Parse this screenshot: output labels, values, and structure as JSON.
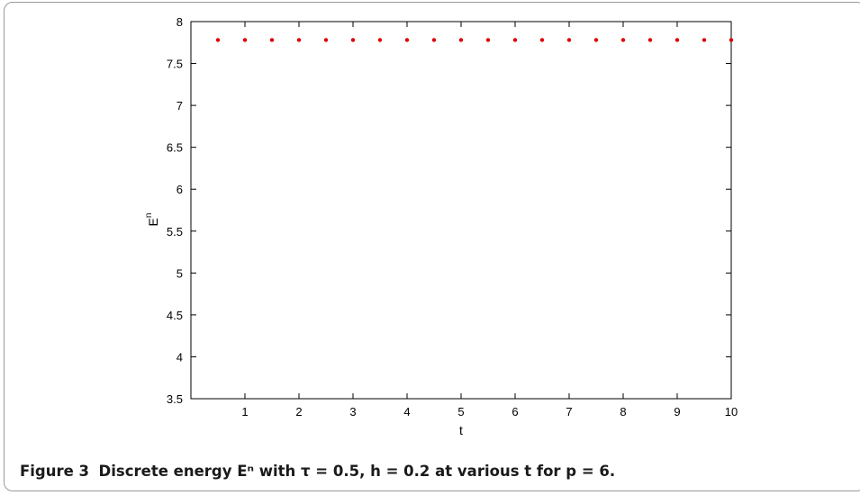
{
  "chart_data": {
    "type": "scatter",
    "title": "",
    "xlabel": "t",
    "ylabel": "E",
    "ylabel_superscript": "n",
    "xlim": [
      0,
      10
    ],
    "ylim": [
      3.5,
      8
    ],
    "xticks": [
      1,
      2,
      3,
      4,
      5,
      6,
      7,
      8,
      9,
      10
    ],
    "yticks": [
      3.5,
      4,
      4.5,
      5,
      5.5,
      6,
      6.5,
      7,
      7.5,
      8
    ],
    "grid": false,
    "point_color": "#e00000",
    "series": [
      {
        "x": [
          0.5,
          1,
          1.5,
          2,
          2.5,
          3,
          3.5,
          4,
          4.5,
          5,
          5.5,
          6,
          6.5,
          7,
          7.5,
          8,
          8.5,
          9,
          9.5,
          10
        ],
        "y": [
          7.78,
          7.78,
          7.78,
          7.78,
          7.78,
          7.78,
          7.78,
          7.78,
          7.78,
          7.78,
          7.78,
          7.78,
          7.78,
          7.78,
          7.78,
          7.78,
          7.78,
          7.78,
          7.78,
          7.78
        ]
      }
    ]
  },
  "caption": {
    "figure_label": "Figure 3",
    "text": "Discrete energy Eⁿ with τ = 0.5, h = 0.2 at various t for p = 6."
  }
}
